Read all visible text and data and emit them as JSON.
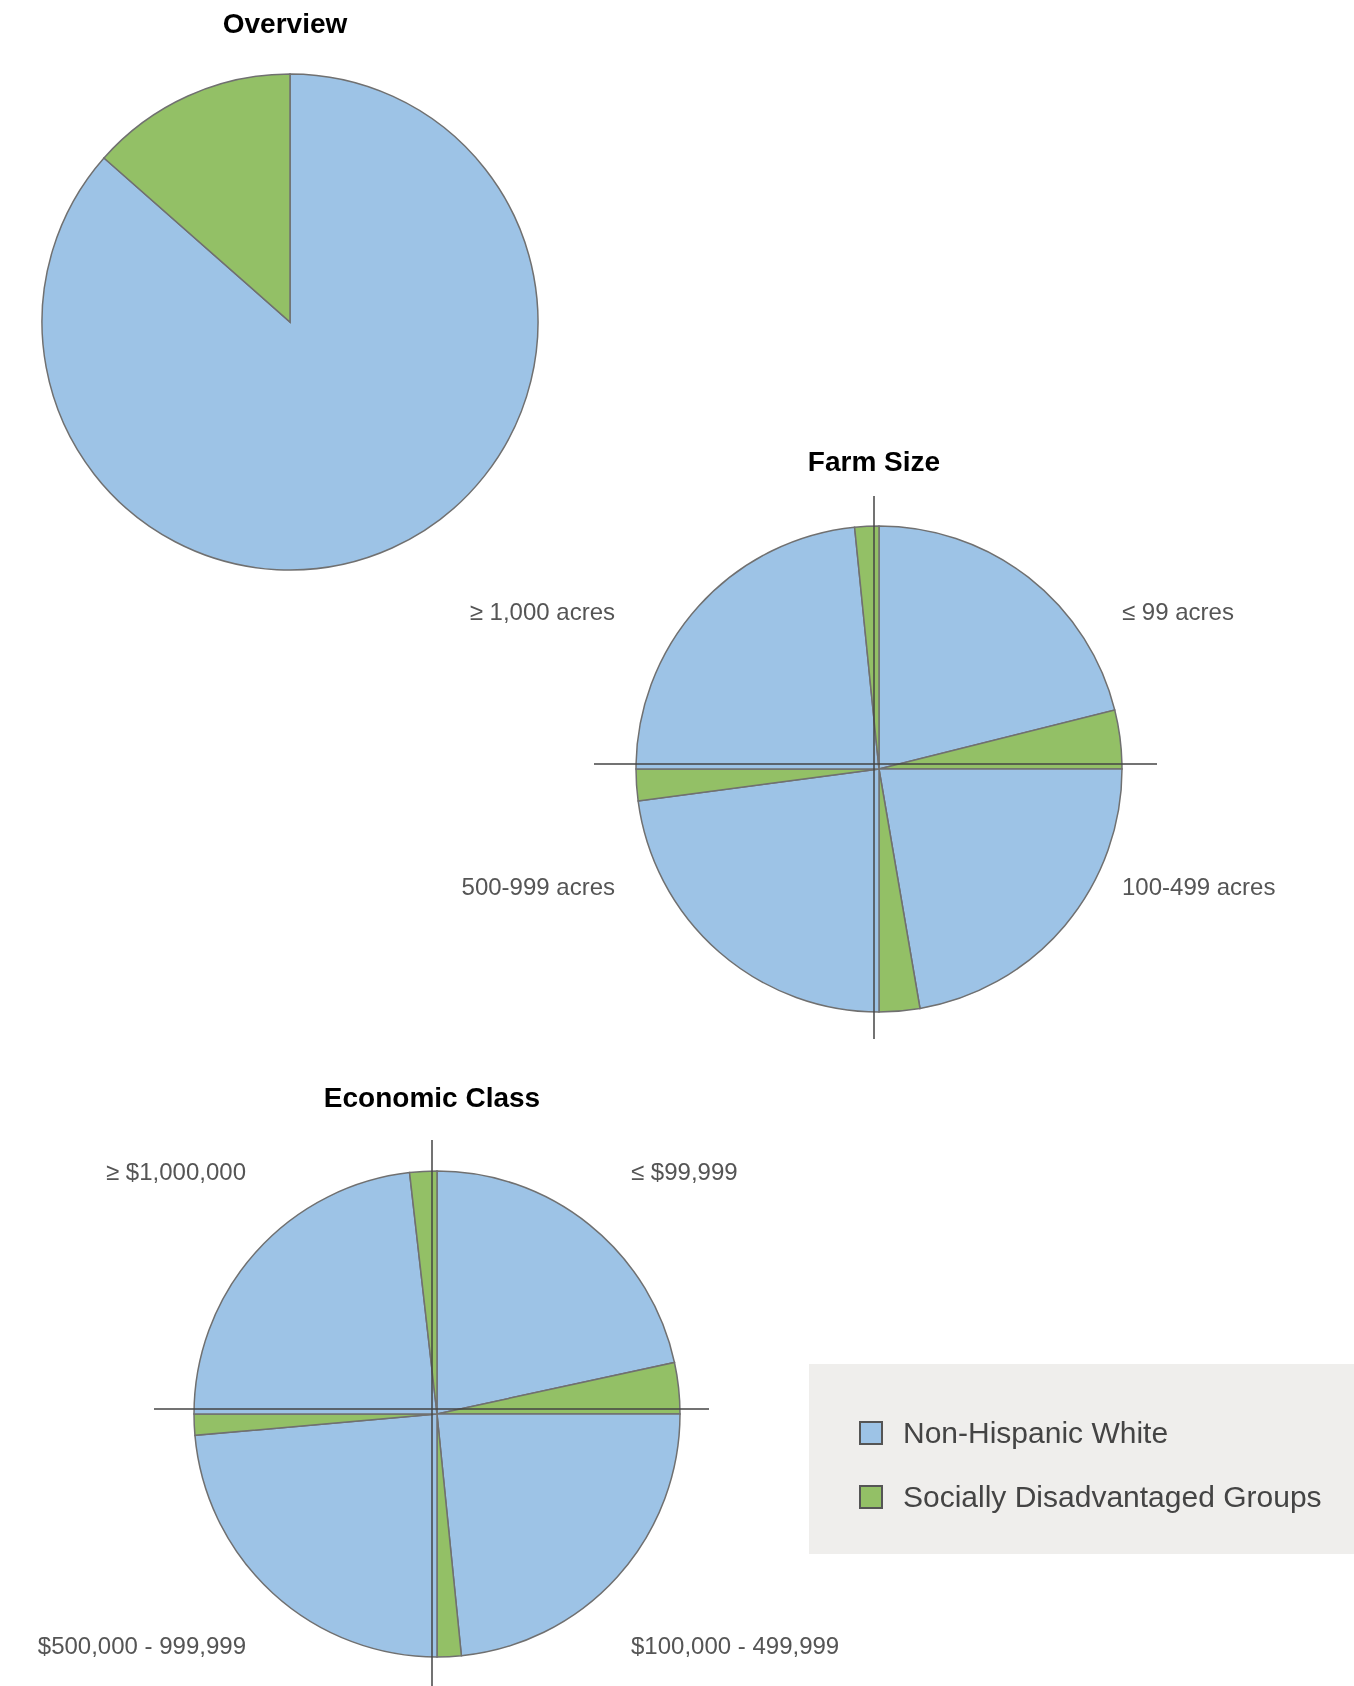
{
  "chart_data": [
    {
      "type": "pie",
      "title": "Overview",
      "categories": [
        null,
        null
      ],
      "values": [
        86.5,
        13.5
      ],
      "colors": [
        "#9dc3e6",
        "#93c066"
      ]
    },
    {
      "type": "pie",
      "title": "Farm Size",
      "categories": [
        "≤ 99 acres",
        null,
        "100-499 acres",
        null,
        "500-999 acres",
        null,
        "≥ 1,000 acres",
        null
      ],
      "values": [
        21.1,
        3.9,
        22.3,
        2.7,
        22.9,
        2.1,
        23.4,
        1.6
      ],
      "colors": [
        "#9dc3e6",
        "#93c066",
        "#9dc3e6",
        "#93c066",
        "#9dc3e6",
        "#93c066",
        "#9dc3e6",
        "#93c066"
      ]
    },
    {
      "type": "pie",
      "title": "Economic Class",
      "categories": [
        "≤ $99,999",
        null,
        "$100,000 - 499,999",
        null,
        "$500,000 - 999,999",
        null,
        "≥ $1,000,000",
        null
      ],
      "values": [
        21.6,
        3.4,
        23.4,
        1.6,
        23.6,
        1.4,
        23.2,
        1.8
      ],
      "colors": [
        "#9dc3e6",
        "#93c066",
        "#9dc3e6",
        "#93c066",
        "#9dc3e6",
        "#93c066",
        "#9dc3e6",
        "#93c066"
      ]
    },
    {
      "type": "other",
      "legend": "right",
      "series": [
        {
          "name": "Non-Hispanic White",
          "color": "#9dc3e6"
        },
        {
          "name": "Socially Disadvantaged Groups",
          "color": "#93c066"
        }
      ]
    }
  ]
}
